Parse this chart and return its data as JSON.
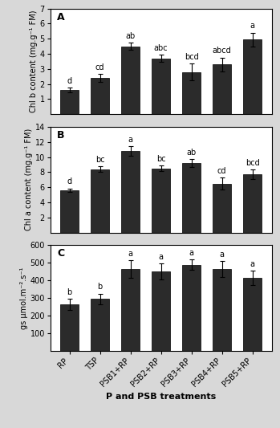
{
  "categories": [
    "RP",
    "TSP",
    "PSB1+RP",
    "PSB2+RP",
    "PSB3+RP",
    "PSB4+RP",
    "PSB5+RP"
  ],
  "panel_A": {
    "label": "A",
    "ylabel": "Chl b content (mg.g⁻¹ FM)",
    "values": [
      1.6,
      2.4,
      4.5,
      3.7,
      2.8,
      3.3,
      4.95
    ],
    "errors": [
      0.15,
      0.25,
      0.25,
      0.25,
      0.55,
      0.45,
      0.45
    ],
    "sig_labels": [
      "d",
      "cd",
      "ab",
      "abc",
      "bcd",
      "abcd",
      "a"
    ],
    "ylim": [
      0,
      7
    ],
    "yticks": [
      1,
      2,
      3,
      4,
      5,
      6,
      7
    ]
  },
  "panel_B": {
    "label": "B",
    "ylabel": "Chl a content (mg.g⁻¹ FM)",
    "values": [
      5.6,
      8.4,
      10.8,
      8.5,
      9.2,
      6.5,
      7.7
    ],
    "errors": [
      0.25,
      0.35,
      0.65,
      0.35,
      0.55,
      0.8,
      0.65
    ],
    "sig_labels": [
      "d",
      "bc",
      "a",
      "bc",
      "ab",
      "cd",
      "bcd"
    ],
    "ylim": [
      0,
      14
    ],
    "yticks": [
      2,
      4,
      6,
      8,
      10,
      12,
      14
    ]
  },
  "panel_C": {
    "label": "C",
    "ylabel": "gs µmol.m⁻².s⁻¹",
    "values": [
      265,
      295,
      465,
      450,
      490,
      465,
      415
    ],
    "errors": [
      30,
      30,
      50,
      45,
      30,
      45,
      40
    ],
    "sig_labels": [
      "b",
      "b",
      "a",
      "a",
      "a",
      "a",
      "a"
    ],
    "ylim": [
      0,
      600
    ],
    "yticks": [
      100,
      200,
      300,
      400,
      500,
      600
    ]
  },
  "xlabel": "P and PSB treatments",
  "bar_color": "#2b2b2b",
  "bar_width": 0.6,
  "fig_facecolor": "#d8d8d8",
  "axes_facecolor": "#ffffff"
}
